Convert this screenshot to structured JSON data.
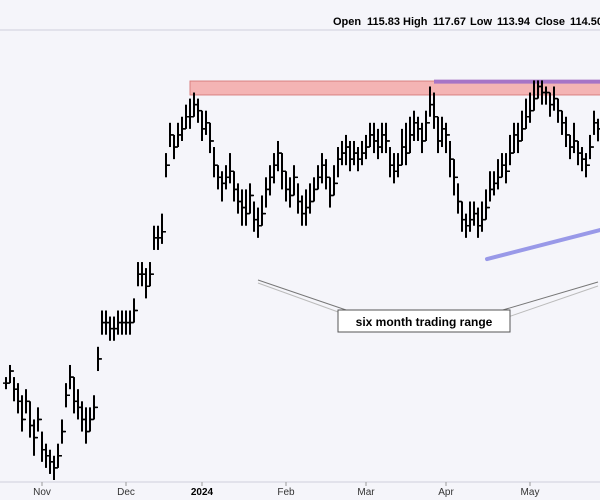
{
  "ohlc_header": {
    "open_label": "Open",
    "open_value": "115.83",
    "high_label": "High",
    "high_value": "117.67",
    "low_label": "Low",
    "low_value": "113.94",
    "close_label": "Close",
    "close_value": "114.50"
  },
  "chart_data": {
    "type": "ohlc",
    "title": "",
    "xlabel": "",
    "ylabel": "",
    "x_tick_labels": [
      {
        "label": "Nov",
        "index": 10,
        "emphasis": false
      },
      {
        "label": "Dec",
        "index": 31,
        "emphasis": false
      },
      {
        "label": "2024",
        "index": 50,
        "emphasis": true
      },
      {
        "label": "Feb",
        "index": 71,
        "emphasis": false
      },
      {
        "label": "Mar",
        "index": 91,
        "emphasis": false
      },
      {
        "label": "Apr",
        "index": 111,
        "emphasis": false
      },
      {
        "label": "May",
        "index": 132,
        "emphasis": false
      }
    ],
    "grid": false,
    "resistance_zone": {
      "low": 121.6,
      "high": 123.9,
      "color": "#f4b4b4",
      "stroke": "#d98080"
    },
    "highlight_line": {
      "start_index": 106,
      "end_index": 148,
      "level": 123.8,
      "color": "#a774c6"
    },
    "trendline": {
      "start_index": 119,
      "start_value": 94.5,
      "end_index": 148,
      "end_value": 98.3,
      "color": "#9999e8"
    },
    "annotation": {
      "text": "six month trading range",
      "pointer_index_1": 63,
      "pointer_index_2": 147,
      "box_color": "#ffffff",
      "border_color": "#555555"
    },
    "bar_color": "#000000",
    "closes": [
      74,
      76,
      73,
      71,
      68,
      71,
      67,
      65,
      68,
      63,
      62,
      61,
      60,
      62,
      66,
      72,
      75,
      71,
      70,
      68,
      66,
      68,
      70,
      78,
      84,
      84,
      83,
      83,
      84,
      84,
      84,
      84,
      86,
      92,
      92,
      90,
      92,
      98,
      98,
      99,
      110,
      115,
      113,
      115,
      116,
      118,
      118,
      120,
      119,
      116,
      117,
      114,
      110,
      108,
      107,
      108,
      109,
      106,
      104,
      103,
      102,
      105,
      101,
      100,
      102,
      106,
      108,
      110,
      112,
      109,
      106,
      105,
      108,
      104,
      102,
      103,
      104,
      106,
      108,
      110,
      108,
      105,
      107,
      111,
      112,
      113,
      111,
      112,
      111,
      112,
      113,
      115,
      114,
      113,
      115,
      114,
      110,
      109,
      110,
      113,
      112,
      115,
      117,
      116,
      114,
      117,
      120,
      118,
      114,
      116,
      115,
      111,
      108,
      104,
      101,
      100,
      101,
      102,
      100,
      101,
      103,
      106,
      107,
      108,
      110,
      109,
      112,
      115,
      114,
      116,
      118,
      119,
      121,
      123,
      122,
      122,
      120,
      121,
      119,
      117,
      115,
      113,
      114,
      112,
      111,
      110,
      113,
      117,
      116,
      114.5
    ],
    "highs": [
      75,
      77,
      75,
      74,
      72,
      73,
      71,
      68,
      70,
      66,
      64,
      63,
      62,
      64,
      68,
      74,
      77,
      75,
      73,
      71,
      70,
      70,
      72,
      80,
      86,
      86,
      85,
      85,
      86,
      86,
      86,
      86,
      88,
      94,
      94,
      93,
      94,
      100,
      100,
      102,
      112,
      117,
      115,
      117,
      118,
      120,
      121,
      122,
      121,
      119,
      119,
      117,
      113,
      110,
      109,
      110,
      112,
      109,
      107,
      106,
      106,
      107,
      104,
      103,
      105,
      108,
      110,
      112,
      114,
      112,
      109,
      108,
      110,
      107,
      105,
      106,
      107,
      108,
      110,
      112,
      111,
      108,
      110,
      113,
      114,
      115,
      114,
      114,
      113,
      114,
      115,
      117,
      117,
      116,
      117,
      117,
      113,
      112,
      112,
      116,
      117,
      118,
      119,
      118,
      117,
      119,
      123,
      122,
      118,
      118,
      117,
      114,
      111,
      107,
      104,
      102,
      104,
      104,
      103,
      104,
      106,
      109,
      109,
      111,
      112,
      112,
      115,
      117,
      117,
      119,
      121,
      122,
      124,
      124,
      124,
      123,
      122,
      123,
      121,
      119,
      118,
      115,
      117,
      114,
      113,
      112,
      115,
      119,
      117.67,
      117.67
    ],
    "lows": [
      73,
      74,
      71,
      69,
      66,
      69,
      65,
      62,
      66,
      61,
      60,
      59,
      58,
      60,
      64,
      70,
      73,
      69,
      68,
      66,
      64,
      66,
      68,
      76,
      82,
      82,
      81,
      81,
      82,
      82,
      82,
      82,
      84,
      90,
      90,
      88,
      90,
      96,
      96,
      97,
      108,
      113,
      111,
      113,
      114,
      116,
      116,
      118,
      117,
      114,
      115,
      112,
      108,
      106,
      104,
      106,
      107,
      104,
      102,
      100,
      100,
      102,
      99,
      98,
      100,
      103,
      105,
      107,
      109,
      106,
      104,
      103,
      105,
      102,
      100,
      100,
      102,
      104,
      106,
      107,
      106,
      103,
      105,
      108,
      110,
      110,
      109,
      110,
      109,
      110,
      111,
      113,
      112,
      111,
      112,
      112,
      108,
      107,
      108,
      110,
      110,
      112,
      114,
      114,
      112,
      114,
      118,
      116,
      112,
      113,
      112,
      108,
      105,
      102,
      99,
      98,
      99,
      100,
      98,
      99,
      101,
      104,
      105,
      106,
      108,
      107,
      110,
      112,
      112,
      114,
      116,
      117,
      119,
      121,
      120,
      120,
      118,
      119,
      117,
      115,
      113,
      111,
      112,
      110,
      109,
      108,
      111,
      115,
      113.94,
      113.94
    ],
    "ylim": [
      58,
      132
    ]
  }
}
